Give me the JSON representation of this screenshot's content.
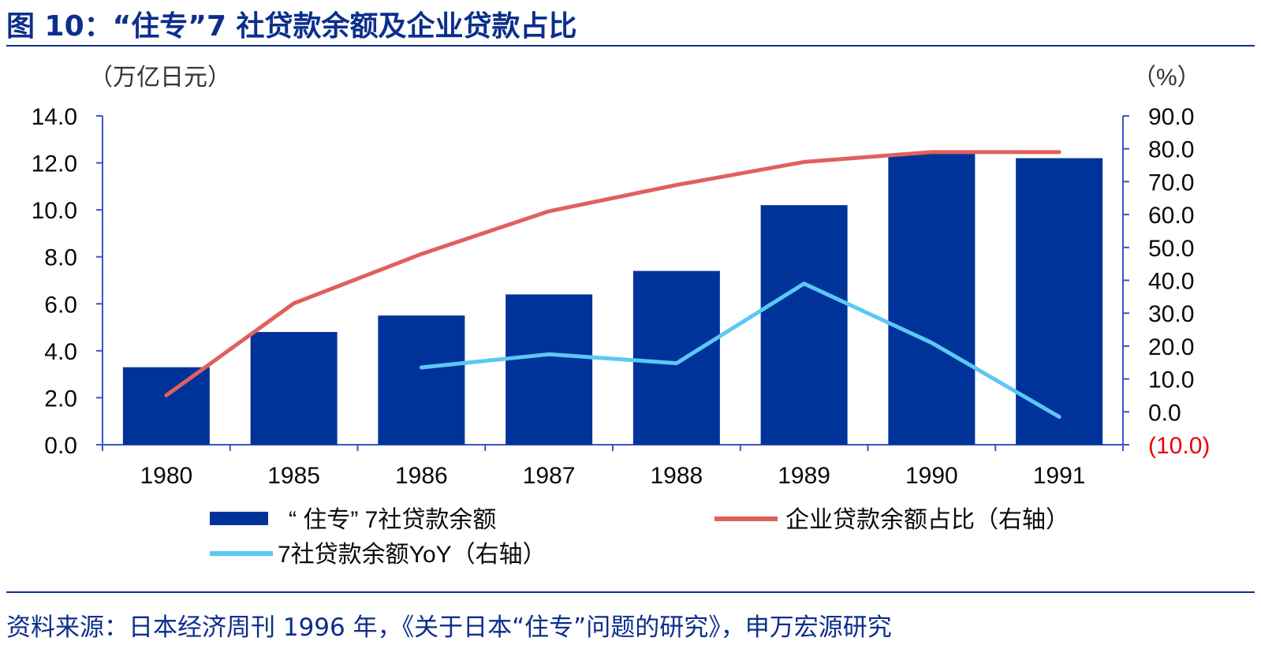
{
  "figure": {
    "title": "图 10：“住专”7 社贷款余额及企业贷款占比",
    "source": "资料来源：日本经济周刊 1996 年，《关于日本“住专”问题的研究》，申万宏源研究"
  },
  "chart_data": {
    "type": "bar",
    "categories": [
      "1980",
      "1985",
      "1986",
      "1987",
      "1988",
      "1989",
      "1990",
      "1991"
    ],
    "y_left": {
      "unit": "（万亿日元）",
      "range": [
        0,
        14
      ],
      "ticks": [
        "0.0",
        "2.0",
        "4.0",
        "6.0",
        "8.0",
        "10.0",
        "12.0",
        "14.0"
      ]
    },
    "y_right": {
      "unit": "（%）",
      "range": [
        -10,
        90
      ],
      "ticks": [
        "(10.0)",
        "0.0",
        "10.0",
        "20.0",
        "30.0",
        "40.0",
        "50.0",
        "60.0",
        "70.0",
        "80.0",
        "90.0"
      ],
      "negative_tick_color": "#e8000b"
    },
    "series": [
      {
        "name": "“ 住专” 7社贷款余额",
        "kind": "bar",
        "axis": "left",
        "color": "#003399",
        "values": [
          3.3,
          4.8,
          5.5,
          6.4,
          7.4,
          10.2,
          12.4,
          12.2
        ]
      },
      {
        "name": "企业贷款余额占比（右轴）",
        "kind": "line",
        "axis": "right",
        "color": "#e0605e",
        "values": [
          5,
          33,
          48,
          61,
          69,
          76,
          79,
          79
        ]
      },
      {
        "name": "7社贷款余额YoY（右轴）",
        "kind": "line",
        "axis": "right",
        "color": "#5bc8f5",
        "values": [
          null,
          null,
          13.5,
          17.5,
          14.8,
          39,
          21,
          -1.5
        ]
      }
    ],
    "grid": false,
    "legend_position": "bottom"
  }
}
